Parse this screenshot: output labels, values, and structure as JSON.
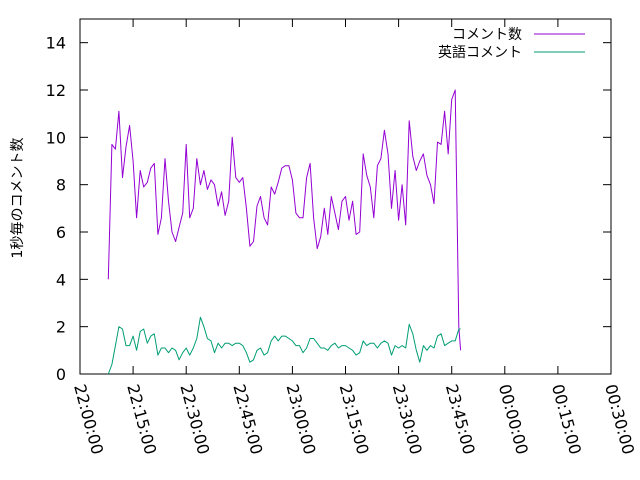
{
  "chart_data": {
    "type": "line",
    "title": "",
    "xlabel": "",
    "ylabel": "1秒毎のコメント数",
    "xlim": [
      "22:00:00",
      "00:30:00"
    ],
    "ylim": [
      0,
      15
    ],
    "grid": false,
    "legend_position": "top-right",
    "x_ticks": [
      "22:00:00",
      "22:15:00",
      "22:30:00",
      "22:45:00",
      "23:00:00",
      "23:15:00",
      "23:30:00",
      "23:45:00",
      "00:00:00",
      "00:15:00",
      "00:30:00"
    ],
    "y_ticks": [
      "0",
      "2",
      "4",
      "6",
      "8",
      "10",
      "12",
      "14"
    ],
    "series": [
      {
        "name": "コメント数",
        "color": "#9400d3",
        "points": [
          [
            "22:08:00",
            4.0
          ],
          [
            "22:09:00",
            9.7
          ],
          [
            "22:10:00",
            9.5
          ],
          [
            "22:11:00",
            11.1
          ],
          [
            "22:12:00",
            8.3
          ],
          [
            "22:13:00",
            9.6
          ],
          [
            "22:14:00",
            10.5
          ],
          [
            "22:15:00",
            9.0
          ],
          [
            "22:16:00",
            6.6
          ],
          [
            "22:17:00",
            8.6
          ],
          [
            "22:18:00",
            7.9
          ],
          [
            "22:19:00",
            8.1
          ],
          [
            "22:20:00",
            8.7
          ],
          [
            "22:21:00",
            8.9
          ],
          [
            "22:22:00",
            5.9
          ],
          [
            "22:23:00",
            6.6
          ],
          [
            "22:24:00",
            9.1
          ],
          [
            "22:25:00",
            7.3
          ],
          [
            "22:26:00",
            6.0
          ],
          [
            "22:27:00",
            5.6
          ],
          [
            "22:28:00",
            6.2
          ],
          [
            "22:29:00",
            6.8
          ],
          [
            "22:30:00",
            9.7
          ],
          [
            "22:31:00",
            6.6
          ],
          [
            "22:32:00",
            7.0
          ],
          [
            "22:33:00",
            9.1
          ],
          [
            "22:34:00",
            8.0
          ],
          [
            "22:35:00",
            8.6
          ],
          [
            "22:36:00",
            7.8
          ],
          [
            "22:37:00",
            8.2
          ],
          [
            "22:38:00",
            8.0
          ],
          [
            "22:39:00",
            7.1
          ],
          [
            "22:40:00",
            7.7
          ],
          [
            "22:41:00",
            6.7
          ],
          [
            "22:42:00",
            7.3
          ],
          [
            "22:43:00",
            10.0
          ],
          [
            "22:44:00",
            8.3
          ],
          [
            "22:45:00",
            8.1
          ],
          [
            "22:46:00",
            8.3
          ],
          [
            "22:47:00",
            7.0
          ],
          [
            "22:48:00",
            5.4
          ],
          [
            "22:49:00",
            5.6
          ],
          [
            "22:50:00",
            7.1
          ],
          [
            "22:51:00",
            7.5
          ],
          [
            "22:52:00",
            6.6
          ],
          [
            "22:53:00",
            6.3
          ],
          [
            "22:54:00",
            7.9
          ],
          [
            "22:55:00",
            7.6
          ],
          [
            "22:56:00",
            8.1
          ],
          [
            "22:57:00",
            8.7
          ],
          [
            "22:58:00",
            8.8
          ],
          [
            "22:59:00",
            8.8
          ],
          [
            "23:00:00",
            8.2
          ],
          [
            "23:01:00",
            6.8
          ],
          [
            "23:02:00",
            6.6
          ],
          [
            "23:03:00",
            6.6
          ],
          [
            "23:04:00",
            8.3
          ],
          [
            "23:05:00",
            8.9
          ],
          [
            "23:06:00",
            6.6
          ],
          [
            "23:07:00",
            5.3
          ],
          [
            "23:08:00",
            5.8
          ],
          [
            "23:09:00",
            7.0
          ],
          [
            "23:10:00",
            5.9
          ],
          [
            "23:11:00",
            7.5
          ],
          [
            "23:12:00",
            6.8
          ],
          [
            "23:13:00",
            6.1
          ],
          [
            "23:14:00",
            7.3
          ],
          [
            "23:15:00",
            7.5
          ],
          [
            "23:16:00",
            6.5
          ],
          [
            "23:17:00",
            7.3
          ],
          [
            "23:18:00",
            5.9
          ],
          [
            "23:19:00",
            6.0
          ],
          [
            "23:20:00",
            9.3
          ],
          [
            "23:21:00",
            8.4
          ],
          [
            "23:22:00",
            7.9
          ],
          [
            "23:23:00",
            6.6
          ],
          [
            "23:24:00",
            8.8
          ],
          [
            "23:25:00",
            9.1
          ],
          [
            "23:26:00",
            10.3
          ],
          [
            "23:27:00",
            9.3
          ],
          [
            "23:28:00",
            7.0
          ],
          [
            "23:29:00",
            8.6
          ],
          [
            "23:30:00",
            6.5
          ],
          [
            "23:31:00",
            8.0
          ],
          [
            "23:32:00",
            6.3
          ],
          [
            "23:33:00",
            10.7
          ],
          [
            "23:34:00",
            9.2
          ],
          [
            "23:35:00",
            8.6
          ],
          [
            "23:36:00",
            9.0
          ],
          [
            "23:37:00",
            9.3
          ],
          [
            "23:38:00",
            8.4
          ],
          [
            "23:39:00",
            8.0
          ],
          [
            "23:40:00",
            7.2
          ],
          [
            "23:41:00",
            9.8
          ],
          [
            "23:42:00",
            9.7
          ],
          [
            "23:43:00",
            11.1
          ],
          [
            "23:44:00",
            9.3
          ],
          [
            "23:45:00",
            11.6
          ],
          [
            "23:46:00",
            12.0
          ],
          [
            "23:47:00",
            2.0
          ],
          [
            "23:47:30",
            1.0
          ]
        ]
      },
      {
        "name": "英語コメント",
        "color": "#009e73",
        "points": [
          [
            "22:08:00",
            0.0
          ],
          [
            "22:09:00",
            0.4
          ],
          [
            "22:10:00",
            1.2
          ],
          [
            "22:11:00",
            2.0
          ],
          [
            "22:12:00",
            1.9
          ],
          [
            "22:13:00",
            1.2
          ],
          [
            "22:14:00",
            1.2
          ],
          [
            "22:15:00",
            1.6
          ],
          [
            "22:16:00",
            1.0
          ],
          [
            "22:17:00",
            1.8
          ],
          [
            "22:18:00",
            1.9
          ],
          [
            "22:19:00",
            1.3
          ],
          [
            "22:20:00",
            1.6
          ],
          [
            "22:21:00",
            1.7
          ],
          [
            "22:22:00",
            0.8
          ],
          [
            "22:23:00",
            1.1
          ],
          [
            "22:24:00",
            1.1
          ],
          [
            "22:25:00",
            0.9
          ],
          [
            "22:26:00",
            1.1
          ],
          [
            "22:27:00",
            1.0
          ],
          [
            "22:28:00",
            0.6
          ],
          [
            "22:29:00",
            0.9
          ],
          [
            "22:30:00",
            1.1
          ],
          [
            "22:31:00",
            0.8
          ],
          [
            "22:32:00",
            1.1
          ],
          [
            "22:33:00",
            1.5
          ],
          [
            "22:34:00",
            2.4
          ],
          [
            "22:35:00",
            2.0
          ],
          [
            "22:36:00",
            1.5
          ],
          [
            "22:37:00",
            1.4
          ],
          [
            "22:38:00",
            0.9
          ],
          [
            "22:39:00",
            1.3
          ],
          [
            "22:40:00",
            1.1
          ],
          [
            "22:41:00",
            1.3
          ],
          [
            "22:42:00",
            1.3
          ],
          [
            "22:43:00",
            1.2
          ],
          [
            "22:44:00",
            1.3
          ],
          [
            "22:45:00",
            1.3
          ],
          [
            "22:46:00",
            1.2
          ],
          [
            "22:47:00",
            0.9
          ],
          [
            "22:48:00",
            0.5
          ],
          [
            "22:49:00",
            0.6
          ],
          [
            "22:50:00",
            1.0
          ],
          [
            "22:51:00",
            1.1
          ],
          [
            "22:52:00",
            0.8
          ],
          [
            "22:53:00",
            0.9
          ],
          [
            "22:54:00",
            1.4
          ],
          [
            "22:55:00",
            1.6
          ],
          [
            "22:56:00",
            1.4
          ],
          [
            "22:57:00",
            1.6
          ],
          [
            "22:58:00",
            1.6
          ],
          [
            "22:59:00",
            1.5
          ],
          [
            "23:00:00",
            1.4
          ],
          [
            "23:01:00",
            1.2
          ],
          [
            "23:02:00",
            1.2
          ],
          [
            "23:03:00",
            0.9
          ],
          [
            "23:04:00",
            1.1
          ],
          [
            "23:05:00",
            1.5
          ],
          [
            "23:06:00",
            1.5
          ],
          [
            "23:07:00",
            1.3
          ],
          [
            "23:08:00",
            1.1
          ],
          [
            "23:09:00",
            1.1
          ],
          [
            "23:10:00",
            1.0
          ],
          [
            "23:11:00",
            1.2
          ],
          [
            "23:12:00",
            1.3
          ],
          [
            "23:13:00",
            1.1
          ],
          [
            "23:14:00",
            1.2
          ],
          [
            "23:15:00",
            1.2
          ],
          [
            "23:16:00",
            1.1
          ],
          [
            "23:17:00",
            1.0
          ],
          [
            "23:18:00",
            0.8
          ],
          [
            "23:19:00",
            0.9
          ],
          [
            "23:20:00",
            1.4
          ],
          [
            "23:21:00",
            1.2
          ],
          [
            "23:22:00",
            1.3
          ],
          [
            "23:23:00",
            1.3
          ],
          [
            "23:24:00",
            1.1
          ],
          [
            "23:25:00",
            1.3
          ],
          [
            "23:26:00",
            1.4
          ],
          [
            "23:27:00",
            1.3
          ],
          [
            "23:28:00",
            0.8
          ],
          [
            "23:29:00",
            1.2
          ],
          [
            "23:30:00",
            1.1
          ],
          [
            "23:31:00",
            1.2
          ],
          [
            "23:32:00",
            1.1
          ],
          [
            "23:33:00",
            2.1
          ],
          [
            "23:34:00",
            1.7
          ],
          [
            "23:35:00",
            1.0
          ],
          [
            "23:36:00",
            0.5
          ],
          [
            "23:37:00",
            1.2
          ],
          [
            "23:38:00",
            1.0
          ],
          [
            "23:39:00",
            1.2
          ],
          [
            "23:40:00",
            1.1
          ],
          [
            "23:41:00",
            1.6
          ],
          [
            "23:42:00",
            1.7
          ],
          [
            "23:43:00",
            1.2
          ],
          [
            "23:44:00",
            1.3
          ],
          [
            "23:45:00",
            1.4
          ],
          [
            "23:46:00",
            1.4
          ],
          [
            "23:47:00",
            1.9
          ],
          [
            "23:47:30",
            1.9
          ]
        ]
      }
    ]
  }
}
